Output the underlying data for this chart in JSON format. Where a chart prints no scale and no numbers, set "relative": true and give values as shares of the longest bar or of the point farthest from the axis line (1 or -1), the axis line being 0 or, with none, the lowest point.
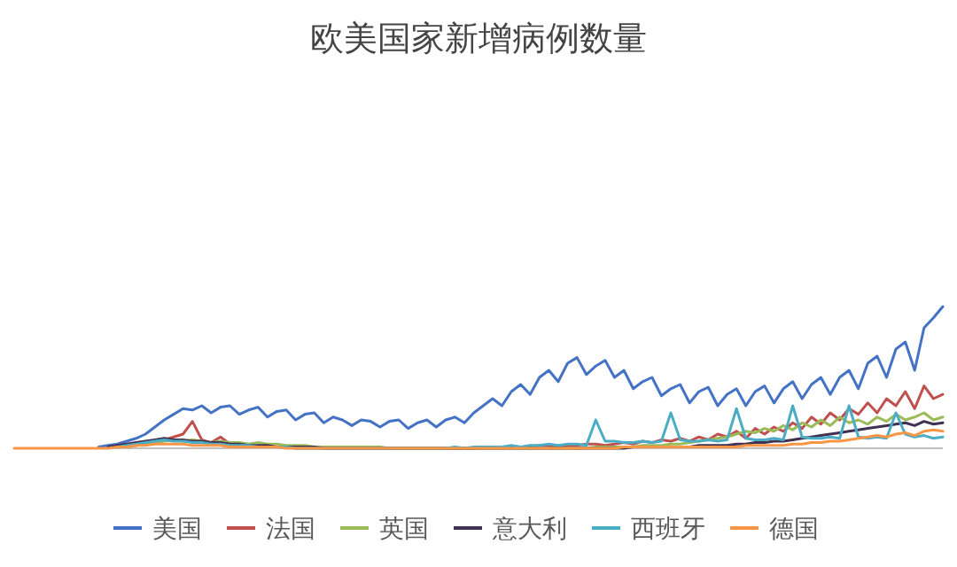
{
  "chart_data": {
    "type": "line",
    "title": "欧美国家新增病例数量",
    "relative": true,
    "legend": "bottom",
    "marker": "none",
    "line_style": "solid",
    "categories": [
      null,
      null,
      null,
      null,
      null,
      null,
      null,
      null,
      null,
      null,
      null,
      null,
      null,
      null,
      null,
      null,
      null,
      null,
      null,
      null,
      null,
      null,
      null,
      null,
      null,
      null,
      null,
      null,
      null,
      null,
      null,
      null,
      null,
      null,
      null,
      null,
      null,
      null,
      null,
      null,
      null,
      null,
      null,
      null,
      null,
      null,
      null,
      null,
      null,
      null,
      null,
      null,
      null,
      null,
      null,
      null,
      null,
      null,
      null,
      null,
      null,
      null,
      null,
      null,
      null,
      null,
      null,
      null,
      null,
      null,
      null,
      null,
      null,
      null,
      null,
      null,
      null,
      null,
      null,
      null,
      null,
      null,
      null,
      null,
      null,
      null,
      null,
      null,
      null,
      null,
      null,
      null,
      null,
      null,
      null,
      null,
      null,
      null,
      null,
      null
    ],
    "series": [
      {
        "name": "美国",
        "color": "#4472c4",
        "values": [
          null,
          null,
          null,
          null,
          null,
          null,
          null,
          null,
          null,
          0.01,
          0.02,
          0.03,
          0.05,
          0.07,
          0.1,
          0.15,
          0.2,
          0.24,
          0.28,
          0.27,
          0.3,
          0.25,
          0.29,
          0.3,
          0.24,
          0.27,
          0.29,
          0.22,
          0.26,
          0.27,
          0.2,
          0.24,
          0.25,
          0.18,
          0.22,
          0.2,
          0.16,
          0.2,
          0.19,
          0.15,
          0.19,
          0.2,
          0.14,
          0.18,
          0.2,
          0.15,
          0.2,
          0.22,
          0.18,
          0.25,
          0.3,
          0.35,
          0.3,
          0.4,
          0.45,
          0.38,
          0.5,
          0.55,
          0.47,
          0.6,
          0.64,
          0.52,
          0.58,
          0.62,
          0.5,
          0.55,
          0.42,
          0.47,
          0.5,
          0.37,
          0.42,
          0.45,
          0.32,
          0.4,
          0.43,
          0.3,
          0.38,
          0.42,
          0.3,
          0.4,
          0.44,
          0.32,
          0.42,
          0.47,
          0.35,
          0.45,
          0.5,
          0.38,
          0.5,
          0.55,
          0.42,
          0.6,
          0.65,
          0.5,
          0.7,
          0.75,
          0.55,
          0.85,
          0.92,
          1.0
        ]
      },
      {
        "name": "法国",
        "color": "#c0504d",
        "values": [
          null,
          null,
          null,
          null,
          null,
          null,
          null,
          null,
          null,
          null,
          null,
          null,
          0.01,
          0.02,
          0.03,
          0.05,
          0.06,
          0.08,
          0.1,
          0.19,
          0.06,
          0.04,
          0.08,
          0.03,
          0.02,
          0.02,
          0.01,
          0.01,
          0.01,
          0.01,
          0,
          0,
          0,
          0,
          0,
          0,
          0,
          0,
          0,
          0,
          0,
          0,
          0,
          0,
          0,
          0,
          0,
          0,
          0,
          0,
          0.01,
          0.01,
          0.01,
          0.01,
          0.01,
          0.01,
          0.02,
          0.02,
          0.01,
          0.02,
          0.02,
          0.03,
          0.03,
          0.02,
          0.03,
          0.04,
          0.03,
          0.05,
          0.04,
          0.06,
          0.05,
          0.07,
          0.05,
          0.08,
          0.06,
          0.1,
          0.08,
          0.12,
          0.07,
          0.14,
          0.1,
          0.15,
          0.12,
          0.18,
          0.14,
          0.22,
          0.17,
          0.25,
          0.2,
          0.28,
          0.24,
          0.32,
          0.25,
          0.35,
          0.3,
          0.4,
          0.28,
          0.44,
          0.35,
          0.38
        ]
      },
      {
        "name": "英国",
        "color": "#9bbb59",
        "values": [
          null,
          null,
          null,
          null,
          null,
          null,
          null,
          null,
          null,
          null,
          null,
          null,
          0.01,
          0.02,
          0.03,
          0.04,
          0.05,
          0.06,
          0.05,
          0.06,
          0.05,
          0.04,
          0.05,
          0.04,
          0.04,
          0.03,
          0.04,
          0.03,
          0.03,
          0.02,
          0.02,
          0.02,
          0.01,
          0.01,
          0.01,
          0.01,
          0.01,
          0.01,
          0.01,
          0.01,
          0,
          0,
          0,
          0,
          0,
          0,
          0,
          0,
          0,
          0,
          0,
          0,
          0,
          0,
          0,
          0,
          0,
          0,
          0,
          0,
          0,
          0,
          0.01,
          0.01,
          0.01,
          0.01,
          0.01,
          0.02,
          0.02,
          0.02,
          0.03,
          0.03,
          0.04,
          0.05,
          0.06,
          0.07,
          0.08,
          0.1,
          0.12,
          0.11,
          0.14,
          0.12,
          0.16,
          0.13,
          0.18,
          0.15,
          0.2,
          0.16,
          0.22,
          0.18,
          0.2,
          0.17,
          0.22,
          0.19,
          0.24,
          0.2,
          0.22,
          0.25,
          0.2,
          0.22
        ]
      },
      {
        "name": "意大利",
        "color": "#403152",
        "values": [
          null,
          null,
          null,
          null,
          null,
          null,
          null,
          null,
          null,
          null,
          0.01,
          0.02,
          0.03,
          0.04,
          0.05,
          0.06,
          0.07,
          0.06,
          0.06,
          0.05,
          0.05,
          0.04,
          0.04,
          0.03,
          0.03,
          0.02,
          0.02,
          0.02,
          0.01,
          0.01,
          0.01,
          0.01,
          0.01,
          0,
          0,
          0,
          0,
          0,
          0,
          0,
          0,
          0,
          0,
          0,
          0,
          0,
          0,
          0,
          0,
          0,
          0,
          0,
          0,
          0,
          0,
          0,
          0,
          0,
          0,
          0,
          0,
          0,
          0,
          0,
          0,
          0,
          0.01,
          0.01,
          0.01,
          0.01,
          0.01,
          0.01,
          0.01,
          0.02,
          0.02,
          0.02,
          0.02,
          0.03,
          0.03,
          0.04,
          0.04,
          0.05,
          0.05,
          0.06,
          0.07,
          0.08,
          0.09,
          0.1,
          0.11,
          0.12,
          0.13,
          0.14,
          0.15,
          0.16,
          0.17,
          0.18,
          0.16,
          0.19,
          0.17,
          0.18
        ]
      },
      {
        "name": "西班牙",
        "color": "#4bacc6",
        "values": [
          null,
          null,
          null,
          null,
          null,
          null,
          null,
          null,
          null,
          null,
          null,
          0.01,
          0.02,
          0.03,
          0.04,
          0.05,
          0.06,
          0.05,
          0.05,
          0.04,
          0.04,
          0.03,
          0.03,
          0.02,
          0.02,
          0.02,
          0.01,
          0.01,
          0.01,
          0.01,
          0,
          0,
          0,
          0,
          0,
          0,
          0,
          0,
          0,
          0,
          0,
          0,
          0,
          0,
          0,
          0,
          0,
          0.01,
          0,
          0.01,
          0.01,
          0.01,
          0.01,
          0.02,
          0.01,
          0.02,
          0.02,
          0.03,
          0.02,
          0.03,
          0.03,
          0.02,
          0.2,
          0.05,
          0.05,
          0.04,
          0.04,
          0.05,
          0.04,
          0.05,
          0.25,
          0.06,
          0.05,
          0.05,
          0.06,
          0.05,
          0.06,
          0.28,
          0.07,
          0.06,
          0.06,
          0.07,
          0.06,
          0.3,
          0.08,
          0.07,
          0.07,
          0.08,
          0.07,
          0.3,
          0.08,
          0.07,
          0.08,
          0.07,
          0.25,
          0.1,
          0.08,
          0.09,
          0.07,
          0.08
        ]
      },
      {
        "name": "德国",
        "color": "#f79646",
        "values": [
          0,
          0,
          0,
          0,
          0,
          0,
          0,
          0,
          0,
          0,
          0,
          0.01,
          0.01,
          0.02,
          0.02,
          0.03,
          0.03,
          0.03,
          0.03,
          0.02,
          0.02,
          0.02,
          0.02,
          0.01,
          0.01,
          0.01,
          0.01,
          0.01,
          0.01,
          0,
          0,
          0,
          0,
          0,
          0,
          0,
          0,
          0,
          0,
          0,
          0,
          0,
          0,
          0,
          0,
          0,
          0,
          0,
          0,
          0,
          0,
          0,
          0,
          0,
          0,
          0,
          0,
          0,
          0,
          0,
          0,
          0,
          0,
          0,
          0,
          0.01,
          0.01,
          0.01,
          0.01,
          0.01,
          0.01,
          0.01,
          0.01,
          0.01,
          0.01,
          0.01,
          0.01,
          0.01,
          0.02,
          0.02,
          0.02,
          0.02,
          0.02,
          0.03,
          0.03,
          0.04,
          0.04,
          0.05,
          0.05,
          0.06,
          0.07,
          0.08,
          0.09,
          0.08,
          0.1,
          0.11,
          0.09,
          0.12,
          0.13,
          0.12
        ]
      }
    ]
  }
}
